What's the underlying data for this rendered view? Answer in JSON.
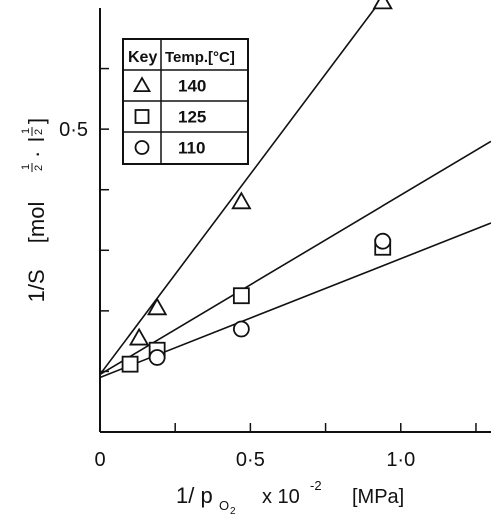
{
  "chart_data": {
    "type": "scatter",
    "ylabel": "1/S",
    "ylabel_unit": "[mol",
    "ylabel_exp1": "1",
    "ylabel_exp1_den": "2",
    "ylabel_dot": "·",
    "ylabel_l": "l",
    "ylabel_exp2": "1",
    "ylabel_exp2_den": "2",
    "ylabel_close": "]",
    "xlabel": "1/ p",
    "xlabel_sub": "O",
    "xlabel_subsub": "2",
    "xlabel_scale": "x 10",
    "xlabel_scale_exp": "-2",
    "xlabel_unit": "[MPa]",
    "xlim": [
      0,
      1.3
    ],
    "ylim": [
      0,
      0.7
    ],
    "x_ticks": [
      0,
      0.5,
      1.0
    ],
    "x_tick_labels": [
      "0",
      "0·5",
      "1·0"
    ],
    "y_ticks": [
      0.5
    ],
    "y_tick_labels": [
      "0·5"
    ],
    "y_minor_ticks": [
      0.1,
      0.2,
      0.3,
      0.4,
      0.5,
      0.6
    ],
    "x_minor_ticks": [
      0.25,
      0.5,
      0.75,
      1.0,
      1.25
    ],
    "grid": false,
    "legend": {
      "placement": "top-left",
      "header_key": "Key",
      "header_temp": "Temp.[°C]"
    },
    "series": [
      {
        "name": "140",
        "marker": "triangle",
        "x": [
          0.13,
          0.19,
          0.47,
          0.94
        ],
        "y": [
          0.155,
          0.205,
          0.38,
          0.71
        ],
        "fit": [
          [
            0,
            0.095
          ],
          [
            1.3,
            0.955
          ]
        ]
      },
      {
        "name": "125",
        "marker": "square",
        "x": [
          0.1,
          0.19,
          0.47,
          0.94
        ],
        "y": [
          0.112,
          0.135,
          0.225,
          0.305
        ],
        "fit": [
          [
            0,
            0.095
          ],
          [
            1.3,
            0.48
          ]
        ]
      },
      {
        "name": "110",
        "marker": "circle",
        "x": [
          0.19,
          0.47,
          0.94
        ],
        "y": [
          0.123,
          0.17,
          0.315
        ],
        "fit": [
          [
            0,
            0.09
          ],
          [
            1.3,
            0.345
          ]
        ]
      }
    ]
  }
}
